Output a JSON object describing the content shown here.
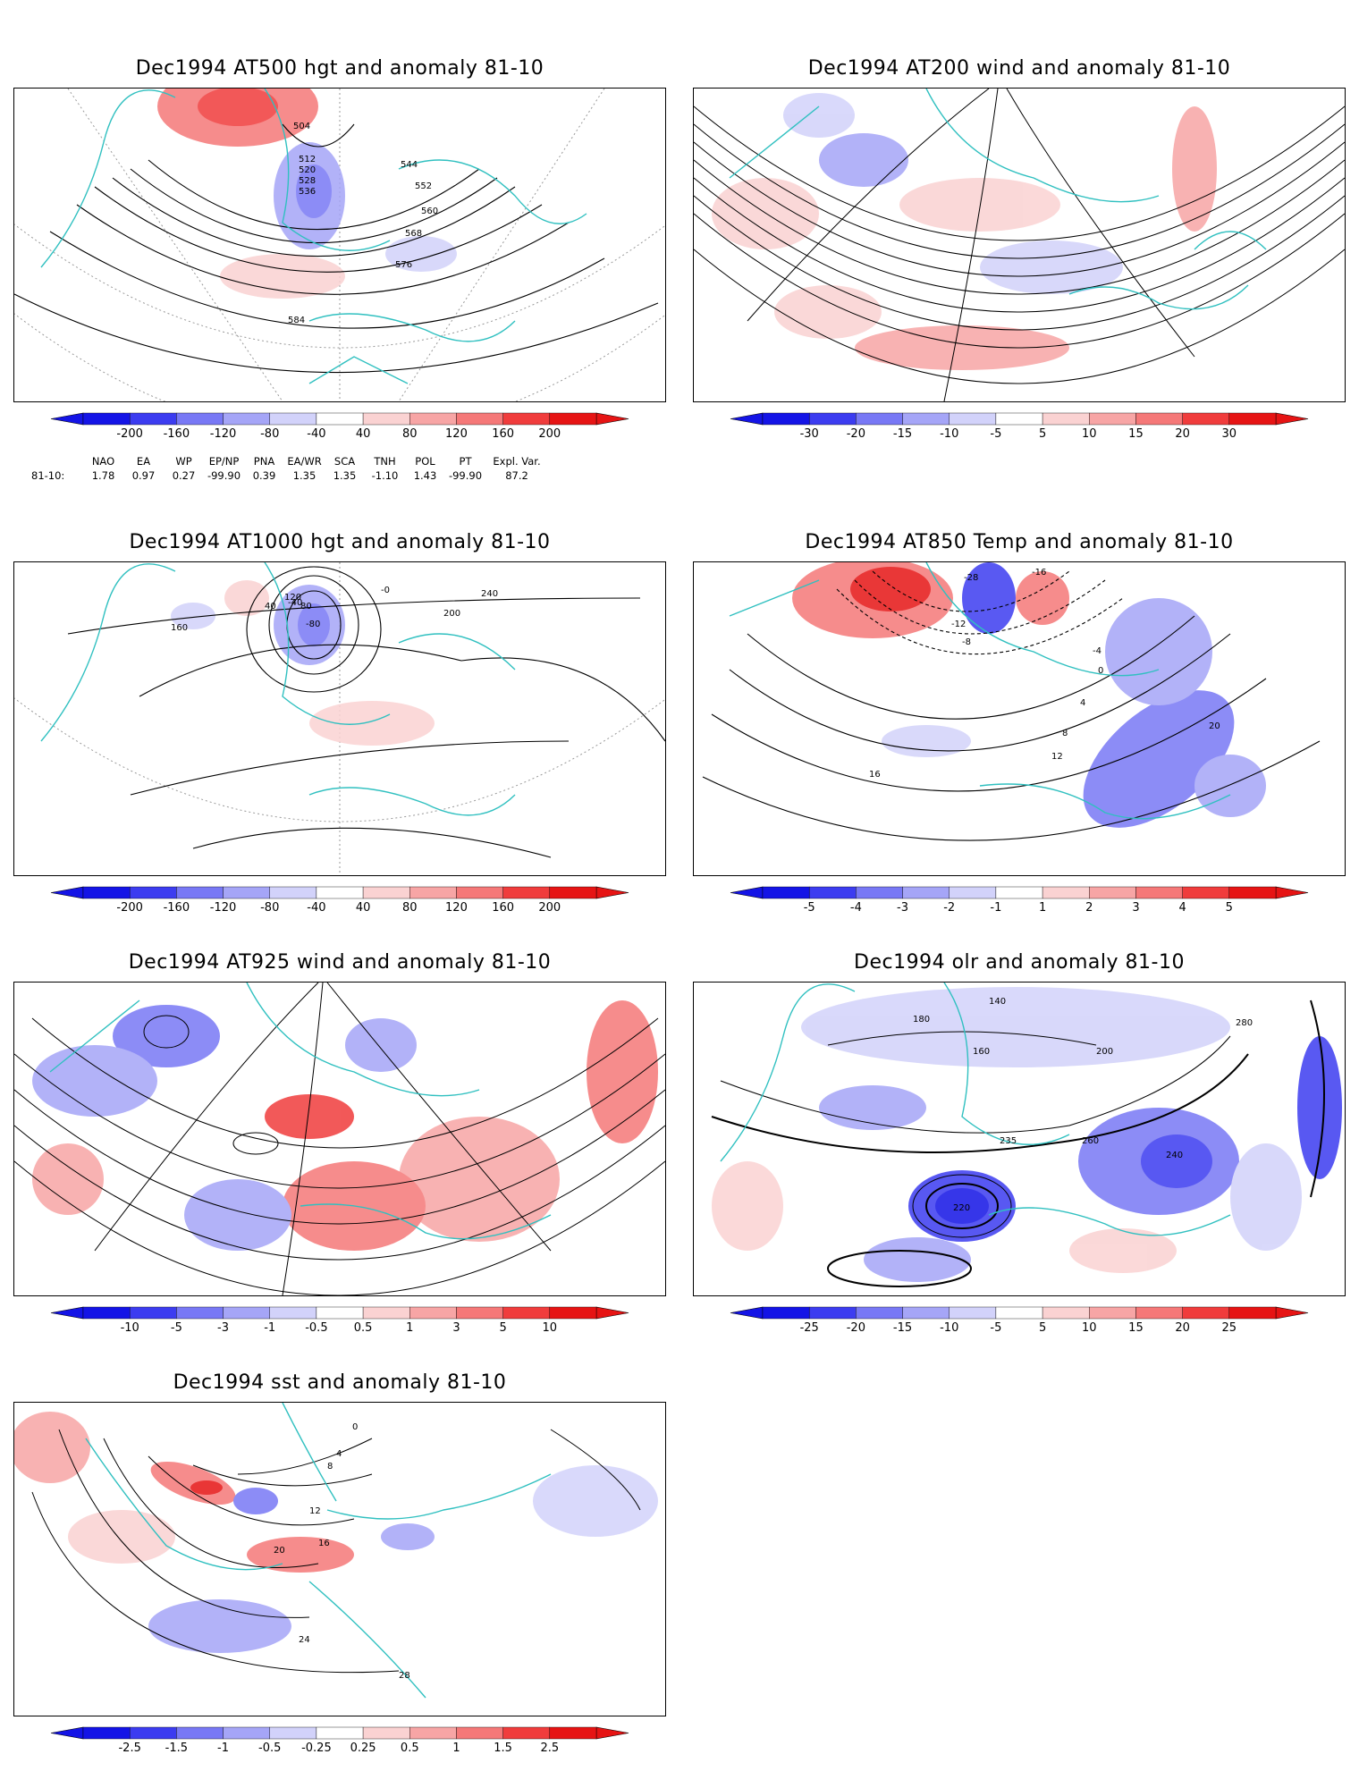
{
  "colors": {
    "coast": "#30c0c0",
    "contour": "#000000",
    "neg_ramp": [
      "#1414e6",
      "#3c3cf0",
      "#7878f5",
      "#a5a5f7",
      "#d2d2fa"
    ],
    "pos_ramp": [
      "#fad2d2",
      "#f7a5a5",
      "#f57878",
      "#f03c3c",
      "#e61414"
    ]
  },
  "panels": [
    {
      "id": "z500",
      "title": "Dec1994 AT500 hgt and anomaly 81-10",
      "contour_labels": [
        "504",
        "512",
        "520",
        "528",
        "536",
        "544",
        "552",
        "560",
        "568",
        "576",
        "584"
      ],
      "colorbar": [
        "-200",
        "-160",
        "-120",
        "-80",
        "-40",
        "40",
        "80",
        "120",
        "160",
        "200"
      ]
    },
    {
      "id": "u200",
      "title": "Dec1994 AT200 wind and anomaly 81-10",
      "contour_labels": [],
      "colorbar": [
        "-30",
        "-20",
        "-15",
        "-10",
        "-5",
        "5",
        "10",
        "15",
        "20",
        "30"
      ]
    },
    {
      "id": "z1000",
      "title": "Dec1994 AT1000 hgt and anomaly 81-10",
      "contour_labels": [
        "-80",
        "-40",
        "-0",
        "40",
        "80",
        "120",
        "160",
        "200",
        "240"
      ],
      "colorbar": [
        "-200",
        "-160",
        "-120",
        "-80",
        "-40",
        "40",
        "80",
        "120",
        "160",
        "200"
      ]
    },
    {
      "id": "t850",
      "title": "Dec1994 AT850 Temp and anomaly 81-10",
      "contour_labels": [
        "-28",
        "-16",
        "-12",
        "-8",
        "-4",
        "0",
        "4",
        "8",
        "12",
        "16",
        "20"
      ],
      "colorbar": [
        "-5",
        "-4",
        "-3",
        "-2",
        "-1",
        "1",
        "2",
        "3",
        "4",
        "5"
      ]
    },
    {
      "id": "u925",
      "title": "Dec1994 AT925 wind and anomaly 81-10",
      "contour_labels": [],
      "colorbar": [
        "-10",
        "-5",
        "-3",
        "-1",
        "-0.5",
        "0.5",
        "1",
        "3",
        "5",
        "10"
      ]
    },
    {
      "id": "olr",
      "title": "Dec1994 olr and anomaly 81-10",
      "contour_labels": [
        "140",
        "160",
        "180",
        "200",
        "220",
        "235",
        "240",
        "260",
        "280"
      ],
      "colorbar": [
        "-25",
        "-20",
        "-15",
        "-10",
        "-5",
        "5",
        "10",
        "15",
        "20",
        "25"
      ]
    },
    {
      "id": "sst",
      "title": "Dec1994 sst and anomaly 81-10",
      "contour_labels": [
        "0",
        "4",
        "8",
        "12",
        "16",
        "20",
        "24",
        "28"
      ],
      "colorbar": [
        "-2.5",
        "-1.5",
        "-1",
        "-0.5",
        "-0.25",
        "0.25",
        "0.5",
        "1",
        "1.5",
        "2.5"
      ]
    }
  ],
  "teleconnections": {
    "header": [
      "NAO",
      "EA",
      "WP",
      "EP/NP",
      "PNA",
      "EA/WR",
      "SCA",
      "TNH",
      "POL",
      "PT",
      "Expl. Var."
    ],
    "label": "81-10:",
    "values": [
      "1.78",
      "0.97",
      "0.27",
      "-99.90",
      "0.39",
      "1.35",
      "1.35",
      "-1.10",
      "1.43",
      "-99.90",
      "87.2"
    ]
  }
}
